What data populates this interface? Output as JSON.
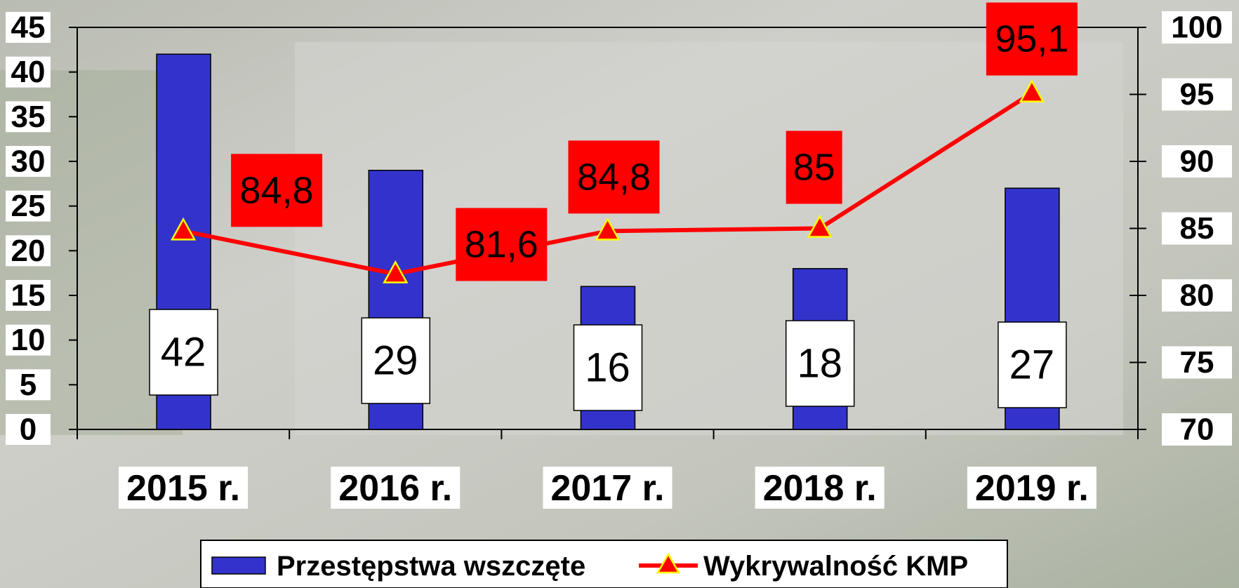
{
  "chart_data": {
    "type": "bar",
    "categories": [
      "2015 r.",
      "2016 r.",
      "2017 r.",
      "2018 r.",
      "2019 r."
    ],
    "series": [
      {
        "name": "Przestępstwa wszczęte",
        "type": "bar",
        "color": "#3333cc",
        "values": [
          42,
          29,
          16,
          18,
          27
        ]
      },
      {
        "name": "Wykrywalność KMP",
        "type": "line",
        "axis": "y2",
        "color": "#ff0000",
        "marker_color": "#ff0000",
        "values": [
          84.8,
          81.6,
          84.8,
          85,
          95.1
        ],
        "value_labels": [
          "84,8",
          "81,6",
          "84,8",
          "85",
          "95,1"
        ]
      }
    ],
    "ylim": [
      0,
      45
    ],
    "yticks": [
      0,
      5,
      10,
      15,
      20,
      25,
      30,
      35,
      40,
      45
    ],
    "y2lim": [
      70,
      100
    ],
    "y2ticks": [
      70,
      75,
      80,
      85,
      90,
      95,
      100
    ],
    "legend": "bottom"
  }
}
